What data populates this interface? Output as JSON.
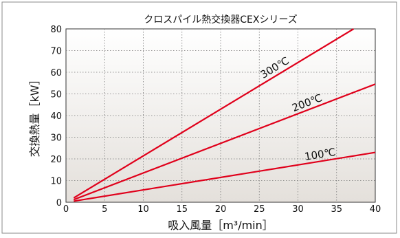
{
  "chart_data": {
    "type": "line",
    "title": "クロスパイル熱交換器CEXシリーズ",
    "xlabel": "吸入風量［m³/min］",
    "ylabel": "交換熱量［kW］",
    "xlim": [
      0,
      40
    ],
    "ylim": [
      0,
      80
    ],
    "x_ticks": [
      "0",
      "5",
      "10",
      "15",
      "20",
      "25",
      "30",
      "35",
      "40"
    ],
    "y_ticks": [
      "0",
      "10",
      "20",
      "30",
      "40",
      "50",
      "60",
      "70",
      "80"
    ],
    "grid": true,
    "series": [
      {
        "name": "300℃",
        "x": [
          1,
          37.2
        ],
        "y": [
          2.0,
          80
        ]
      },
      {
        "name": "200℃",
        "x": [
          1,
          40
        ],
        "y": [
          1.2,
          54.5
        ]
      },
      {
        "name": "100℃",
        "x": [
          1,
          40
        ],
        "y": [
          0.5,
          23.0
        ]
      }
    ],
    "line_color": "#e0001b",
    "annotations": [
      "300℃",
      "200℃",
      "100℃"
    ]
  }
}
